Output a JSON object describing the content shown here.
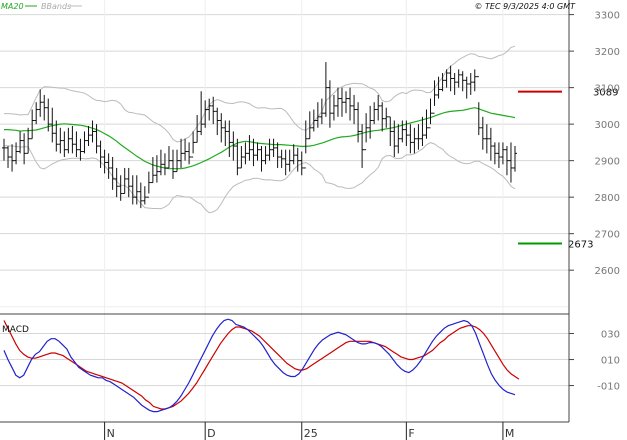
{
  "header": {
    "ma_label": "MA20",
    "bb_label": "BBands",
    "timestamp": "© TEC 9/3/2025 4:0 GMT"
  },
  "colors": {
    "ma": "#22aa22",
    "bbands": "#bbbbbb",
    "bars": "#111111",
    "resistance": "#cc0000",
    "support": "#009900",
    "macd": "#2222cc",
    "signal": "#cc0000",
    "grid": "#d8d8d8",
    "axis_text": "#777777"
  },
  "levels": {
    "resistance": {
      "value": 3089,
      "label": "3089"
    },
    "support": {
      "value": 2673,
      "label": "2673"
    }
  },
  "macd_panel": {
    "label": "MACD"
  },
  "chart_data": [
    {
      "type": "ohlc",
      "panel": "price",
      "ylim": [
        2480,
        3340
      ],
      "yticks": [
        "3300",
        "3200",
        "3100",
        "3000",
        "2900",
        "2800",
        "2700",
        "2600"
      ],
      "x_labels": [
        "N",
        "D",
        "25",
        "F",
        "M"
      ],
      "x_label_bar_index": [
        25,
        50,
        74,
        100,
        124
      ],
      "n_bars": 128,
      "close": [
        2935,
        2910,
        2900,
        2925,
        2955,
        2920,
        2960,
        3010,
        3040,
        3060,
        3045,
        3000,
        2975,
        2945,
        2955,
        2930,
        2960,
        2945,
        2930,
        2925,
        2955,
        2970,
        2980,
        2940,
        2910,
        2895,
        2880,
        2850,
        2830,
        2810,
        2850,
        2830,
        2800,
        2815,
        2790,
        2800,
        2840,
        2860,
        2870,
        2890,
        2880,
        2900,
        2870,
        2900,
        2920,
        2925,
        2910,
        2950,
        2980,
        3000,
        3040,
        3050,
        3035,
        3010,
        2990,
        2980,
        2950,
        2940,
        2880,
        2910,
        2920,
        2930,
        2915,
        2930,
        2900,
        2915,
        2930,
        2935,
        2910,
        2905,
        2890,
        2900,
        2915,
        2900,
        2880,
        2960,
        2990,
        3010,
        3020,
        3030,
        3100,
        3030,
        3050,
        3070,
        3060,
        3070,
        3050,
        3040,
        2980,
        2930,
        2990,
        3010,
        3040,
        3050,
        3015,
        3020,
        2980,
        2940,
        2960,
        2985,
        2970,
        2950,
        2960,
        2960,
        2970,
        2990,
        3030,
        3080,
        3095,
        3120,
        3140,
        3125,
        3115,
        3135,
        3120,
        3110,
        3115,
        3130,
        2990,
        2960,
        2960,
        2940,
        2920,
        2910,
        2930,
        2900,
        2880,
        2920
      ],
      "high": [
        2960,
        2940,
        2945,
        2950,
        2980,
        2975,
        2990,
        3040,
        3060,
        3095,
        3080,
        3070,
        3045,
        3010,
        2990,
        2980,
        2990,
        2995,
        2980,
        2960,
        2980,
        2995,
        3010,
        3000,
        2955,
        2930,
        2920,
        2910,
        2880,
        2860,
        2880,
        2880,
        2860,
        2860,
        2840,
        2830,
        2870,
        2910,
        2915,
        2930,
        2920,
        2940,
        2930,
        2930,
        2960,
        2960,
        2950,
        2980,
        3025,
        3090,
        3065,
        3070,
        3075,
        3045,
        3030,
        3010,
        3010,
        2980,
        2960,
        2940,
        2950,
        2970,
        2960,
        2950,
        2940,
        2940,
        2960,
        2960,
        2950,
        2930,
        2930,
        2930,
        2945,
        2935,
        2925,
        3010,
        3035,
        3040,
        3060,
        3070,
        3170,
        3120,
        3080,
        3100,
        3100,
        3090,
        3100,
        3080,
        3060,
        3000,
        3030,
        3050,
        3060,
        3080,
        3060,
        3045,
        3020,
        3010,
        3000,
        3010,
        3010,
        3000,
        2990,
        3000,
        3020,
        3040,
        3070,
        3120,
        3130,
        3140,
        3150,
        3160,
        3140,
        3150,
        3145,
        3130,
        3140,
        3150,
        3060,
        3020,
        3000,
        2990,
        2950,
        2950,
        2950,
        2940,
        2950,
        2940
      ],
      "low": [
        2900,
        2880,
        2870,
        2890,
        2920,
        2890,
        2920,
        2960,
        3000,
        3020,
        3010,
        2980,
        2950,
        2925,
        2920,
        2910,
        2920,
        2920,
        2910,
        2900,
        2920,
        2940,
        2950,
        2920,
        2880,
        2865,
        2850,
        2820,
        2800,
        2790,
        2810,
        2800,
        2780,
        2780,
        2770,
        2780,
        2810,
        2840,
        2840,
        2860,
        2860,
        2880,
        2850,
        2870,
        2880,
        2900,
        2890,
        2920,
        2950,
        2970,
        2990,
        3010,
        3000,
        2970,
        2950,
        2940,
        2910,
        2900,
        2860,
        2880,
        2890,
        2900,
        2885,
        2900,
        2870,
        2890,
        2900,
        2910,
        2880,
        2880,
        2860,
        2870,
        2890,
        2870,
        2860,
        2920,
        2960,
        2980,
        2990,
        3000,
        3020,
        2990,
        3010,
        3020,
        3020,
        3030,
        3010,
        3000,
        2950,
        2880,
        2950,
        2960,
        3000,
        3010,
        2980,
        2990,
        2940,
        2910,
        2920,
        2950,
        2940,
        2920,
        2920,
        2930,
        2940,
        2960,
        3000,
        3050,
        3070,
        3090,
        3100,
        3090,
        3080,
        3100,
        3090,
        3070,
        3080,
        3090,
        2970,
        2930,
        2920,
        2900,
        2890,
        2880,
        2890,
        2860,
        2840,
        2870
      ],
      "ma20": [
        2985,
        2985,
        2984,
        2983,
        2981,
        2982,
        2982,
        2983,
        2984,
        2987,
        2990,
        2993,
        2996,
        2998,
        3000,
        3001,
        3000,
        2999,
        2998,
        2997,
        2995,
        2992,
        2989,
        2985,
        2980,
        2974,
        2968,
        2961,
        2953,
        2944,
        2936,
        2928,
        2920,
        2912,
        2905,
        2898,
        2893,
        2888,
        2885,
        2882,
        2880,
        2878,
        2878,
        2878,
        2878,
        2880,
        2883,
        2886,
        2890,
        2895,
        2900,
        2905,
        2911,
        2917,
        2923,
        2930,
        2937,
        2943,
        2948,
        2951,
        2953,
        2952,
        2950,
        2948,
        2947,
        2946,
        2945,
        2944,
        2944,
        2944,
        2943,
        2942,
        2941,
        2940,
        2939,
        2939,
        2940,
        2942,
        2945,
        2948,
        2952,
        2956,
        2960,
        2963,
        2965,
        2966,
        2967,
        2969,
        2972,
        2975,
        2978,
        2980,
        2982,
        2983,
        2985,
        2987,
        2989,
        2991,
        2994,
        2997,
        3000,
        3003,
        3006,
        3009,
        3012,
        3015,
        3018,
        3022,
        3026,
        3030,
        3033,
        3035,
        3036,
        3037,
        3038,
        3040,
        3043,
        3045,
        3042,
        3038,
        3034,
        3030,
        3028,
        3026,
        3024,
        3022,
        3020,
        3018
      ]
    },
    {
      "type": "line",
      "panel": "macd",
      "ylim": [
        -38,
        45
      ],
      "yticks": [
        "030",
        "010",
        "-010"
      ],
      "series": [
        {
          "values": [
            17,
            10,
            4,
            -2,
            -4,
            -2,
            4,
            10,
            14,
            16,
            20,
            24,
            26,
            26,
            24,
            21,
            18,
            12,
            8,
            4,
            2,
            0,
            -2,
            -3,
            -4,
            -4,
            -6,
            -7,
            -9,
            -11,
            -13,
            -15,
            -17,
            -19,
            -22,
            -25,
            -27,
            -29,
            -30,
            -30,
            -29,
            -28,
            -27,
            -25,
            -22,
            -18,
            -13,
            -8,
            -2,
            4,
            10,
            16,
            22,
            28,
            33,
            37,
            40,
            41,
            40,
            37,
            36,
            35,
            33,
            30,
            27,
            24,
            20,
            15,
            10,
            6,
            3,
            0,
            -2,
            -3,
            -3,
            -1,
            3,
            8,
            13,
            18,
            22,
            25,
            27,
            29,
            30,
            31,
            30,
            29,
            27,
            25,
            23,
            22,
            22,
            23,
            23,
            22,
            20,
            17,
            14,
            10,
            6,
            3,
            1,
            0,
            2,
            5,
            9,
            14,
            19,
            24,
            28,
            31,
            34,
            36,
            37,
            38,
            39,
            40,
            39,
            36,
            30,
            22,
            14,
            6,
            -1,
            -6,
            -10,
            -13,
            -15,
            -16,
            -17
          ]
        },
        {
          "values": [
            40,
            34,
            28,
            22,
            17,
            14,
            12,
            11,
            11,
            12,
            13,
            14,
            15,
            15,
            14,
            13,
            11,
            9,
            7,
            5,
            3,
            1,
            0,
            -1,
            -2,
            -3,
            -4,
            -5,
            -6,
            -7,
            -8,
            -10,
            -12,
            -14,
            -16,
            -18,
            -21,
            -23,
            -26,
            -27,
            -28,
            -28,
            -27,
            -26,
            -24,
            -22,
            -19,
            -16,
            -12,
            -8,
            -3,
            2,
            7,
            12,
            17,
            22,
            26,
            30,
            33,
            35,
            35,
            34,
            33,
            32,
            30,
            28,
            25,
            22,
            19,
            16,
            13,
            10,
            7,
            5,
            3,
            2,
            2,
            3,
            5,
            7,
            9,
            11,
            13,
            15,
            17,
            19,
            21,
            23,
            24,
            24,
            24,
            24,
            24,
            24,
            23,
            22,
            21,
            20,
            18,
            16,
            14,
            12,
            11,
            10,
            10,
            11,
            12,
            13,
            15,
            17,
            20,
            23,
            25,
            28,
            30,
            32,
            34,
            35,
            36,
            36,
            35,
            33,
            30,
            26,
            21,
            16,
            11,
            6,
            2,
            -1,
            -3,
            -5
          ]
        }
      ]
    }
  ]
}
